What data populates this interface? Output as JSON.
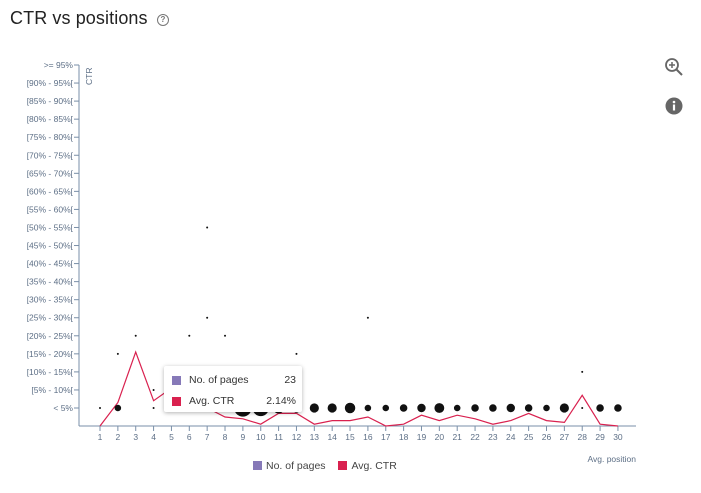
{
  "header": {
    "title": "CTR vs positions",
    "help_icon": "question-circle-icon"
  },
  "toolbar": {
    "zoom_icon": "zoom-in-icon",
    "info_icon": "info-icon"
  },
  "colors": {
    "pages": "#8679b8",
    "ctr": "#d9214f",
    "axis": "#7a8fa8",
    "dot": "#111111"
  },
  "tooltip": {
    "rows": [
      {
        "label": "No. of pages",
        "value": "23",
        "color": "#8679b8"
      },
      {
        "label": "Avg. CTR",
        "value": "2.14%",
        "color": "#d9214f"
      }
    ]
  },
  "legend": [
    {
      "label": "No. of pages",
      "color": "#8679b8"
    },
    {
      "label": "Avg. CTR",
      "color": "#d9214f"
    }
  ],
  "chart_data": {
    "type": "scatter",
    "xlabel": "Avg. position",
    "ylabel": "CTR",
    "x_ticks": [
      "1",
      "2",
      "3",
      "4",
      "5",
      "6",
      "7",
      "8",
      "9",
      "10",
      "11",
      "12",
      "13",
      "14",
      "15",
      "16",
      "17",
      "18",
      "19",
      "20",
      "21",
      "22",
      "23",
      "24",
      "25",
      "26",
      "27",
      "28",
      "29",
      "30"
    ],
    "y_ticks": [
      "< 5%",
      "[5% - 10%[",
      "[10% - 15%[",
      "[15% - 20%[",
      "[20% - 25%[",
      "[25% - 30%[",
      "[30% - 35%[",
      "[35% - 40%[",
      "[40% - 45%[",
      "[45% - 50%[",
      "[50% - 55%[",
      "[55% - 60%[",
      "[60% - 65%[",
      "[65% - 70%[",
      "[70% - 75%[",
      "[75% - 80%[",
      "[80% - 85%[",
      "[85% - 90%[",
      "[90% - 95%[",
      ">= 95%"
    ],
    "series": [
      {
        "name": "No. of pages",
        "points": [
          {
            "x": 1,
            "y": "< 5%",
            "size": 1
          },
          {
            "x": 2,
            "y": "< 5%",
            "size": 2
          },
          {
            "x": 2,
            "y": "[15% - 20%[",
            "size": 1
          },
          {
            "x": 3,
            "y": "[20% - 25%[",
            "size": 1
          },
          {
            "x": 4,
            "y": "< 5%",
            "size": 1
          },
          {
            "x": 4,
            "y": "[5% - 10%[",
            "size": 1
          },
          {
            "x": 6,
            "y": "[20% - 25%[",
            "size": 1
          },
          {
            "x": 7,
            "y": "[50% - 55%[",
            "size": 1
          },
          {
            "x": 7,
            "y": "[25% - 30%[",
            "size": 1
          },
          {
            "x": 8,
            "y": "[20% - 25%[",
            "size": 1
          },
          {
            "x": 9,
            "y": "< 5%",
            "size": 23
          },
          {
            "x": 10,
            "y": "< 5%",
            "size": 20
          },
          {
            "x": 11,
            "y": "< 5%",
            "size": 8
          },
          {
            "x": 12,
            "y": "< 5%",
            "size": 5
          },
          {
            "x": 12,
            "y": "[15% - 20%[",
            "size": 1
          },
          {
            "x": 13,
            "y": "< 5%",
            "size": 5
          },
          {
            "x": 14,
            "y": "< 5%",
            "size": 5
          },
          {
            "x": 15,
            "y": "< 5%",
            "size": 7
          },
          {
            "x": 16,
            "y": "< 5%",
            "size": 2
          },
          {
            "x": 16,
            "y": "[25% - 30%[",
            "size": 1
          },
          {
            "x": 17,
            "y": "< 5%",
            "size": 2
          },
          {
            "x": 18,
            "y": "< 5%",
            "size": 3
          },
          {
            "x": 19,
            "y": "< 5%",
            "size": 4
          },
          {
            "x": 20,
            "y": "< 5%",
            "size": 6
          },
          {
            "x": 21,
            "y": "< 5%",
            "size": 2
          },
          {
            "x": 22,
            "y": "< 5%",
            "size": 3
          },
          {
            "x": 23,
            "y": "< 5%",
            "size": 3
          },
          {
            "x": 24,
            "y": "< 5%",
            "size": 4
          },
          {
            "x": 25,
            "y": "< 5%",
            "size": 3
          },
          {
            "x": 26,
            "y": "< 5%",
            "size": 2
          },
          {
            "x": 27,
            "y": "< 5%",
            "size": 5
          },
          {
            "x": 28,
            "y": "< 5%",
            "size": 1
          },
          {
            "x": 28,
            "y": "[10% - 15%[",
            "size": 1
          },
          {
            "x": 29,
            "y": "< 5%",
            "size": 3
          },
          {
            "x": 30,
            "y": "< 5%",
            "size": 3
          }
        ]
      },
      {
        "name": "Avg. CTR",
        "type": "line",
        "x": [
          1,
          2,
          3,
          4,
          5,
          6,
          7,
          8,
          9,
          10,
          11,
          12,
          13,
          14,
          15,
          16,
          17,
          18,
          19,
          20,
          21,
          22,
          23,
          24,
          25,
          26,
          27,
          28,
          29,
          30
        ],
        "values": [
          0,
          6.5,
          20.5,
          7,
          10.5,
          5.5,
          5,
          2.5,
          2,
          0.5,
          3.5,
          3.5,
          0.5,
          1.5,
          1.5,
          2.5,
          0,
          0.5,
          3,
          1.5,
          3,
          2,
          0.5,
          1.5,
          3.5,
          1.5,
          1,
          8.5,
          0.5,
          0
        ]
      }
    ]
  }
}
